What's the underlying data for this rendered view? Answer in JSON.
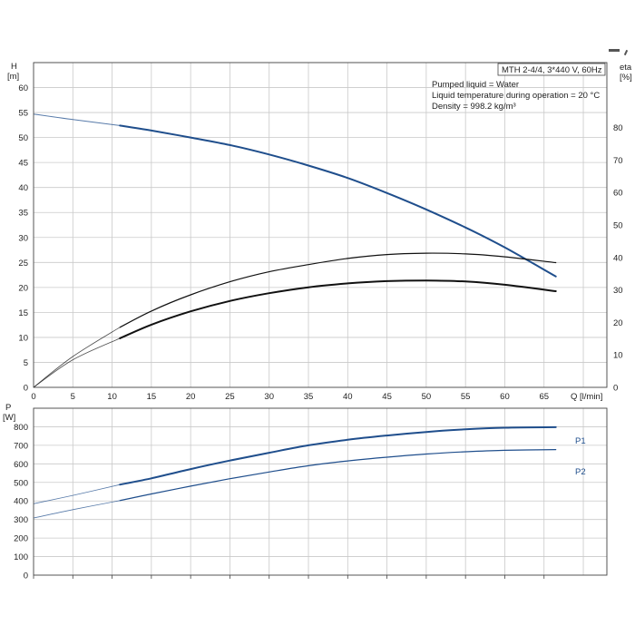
{
  "chart_data": [
    {
      "type": "line",
      "panel": "head-efficiency",
      "x_label": "Q [l/min]",
      "y_label_left": [
        "H",
        "[m]"
      ],
      "y_label_right": [
        "eta",
        "[%]"
      ],
      "xlim": [
        0,
        73
      ],
      "ylim_left": [
        0,
        65
      ],
      "ylim_right": [
        0,
        100
      ],
      "x_ticks": [
        0,
        5,
        10,
        15,
        20,
        25,
        30,
        35,
        40,
        45,
        50,
        55,
        60,
        65
      ],
      "y_ticks_left": [
        0,
        5,
        10,
        15,
        20,
        25,
        30,
        35,
        40,
        45,
        50,
        55,
        60
      ],
      "y_ticks_right": [
        0,
        10,
        20,
        30,
        40,
        50,
        60,
        70,
        80
      ],
      "info_box": {
        "title": "MTH 2-4/4, 3*440 V, 60Hz",
        "lines": [
          "Pumped liquid = Water",
          "Liquid temperature during operation = 20 °C",
          "Density = 998.2 kg/m³"
        ]
      },
      "series": [
        {
          "axis": "left",
          "color": "#1f4e8c",
          "x": [
            0,
            5,
            11,
            15,
            20,
            25,
            30,
            35,
            40,
            45,
            50,
            55,
            60,
            66.5
          ],
          "y": [
            54.7,
            53.6,
            52.4,
            51.4,
            50.0,
            48.5,
            46.6,
            44.4,
            41.9,
            38.9,
            35.6,
            32.0,
            28.0,
            22.2
          ]
        },
        {
          "axis": "right",
          "color": "#111111",
          "x": [
            0,
            5,
            11,
            15,
            20,
            25,
            30,
            35,
            40,
            45,
            50,
            55,
            60,
            66.5
          ],
          "y": [
            0,
            9.5,
            18.5,
            23.5,
            28.5,
            32.5,
            35.6,
            37.8,
            39.7,
            40.9,
            41.3,
            41.1,
            40.2,
            38.4
          ]
        },
        {
          "axis": "right",
          "color": "#111111",
          "x": [
            0,
            5,
            11,
            15,
            20,
            25,
            30,
            35,
            40,
            45,
            50,
            55,
            60,
            66.5
          ],
          "y": [
            0,
            8.5,
            15.1,
            19.3,
            23.4,
            26.6,
            29.0,
            30.8,
            32.0,
            32.7,
            32.9,
            32.6,
            31.6,
            29.6
          ]
        }
      ]
    },
    {
      "type": "line",
      "panel": "power",
      "y_label_left": [
        "P",
        "[W]"
      ],
      "xlim": [
        0,
        73
      ],
      "ylim_left": [
        0,
        900
      ],
      "y_ticks_left": [
        0,
        100,
        200,
        300,
        400,
        500,
        600,
        700,
        800
      ],
      "series": [
        {
          "name": "P1",
          "color": "#1f4e8c",
          "x": [
            0,
            5,
            11,
            15,
            20,
            25,
            30,
            35,
            40,
            45,
            50,
            55,
            60,
            66.5
          ],
          "y": [
            385,
            430,
            488,
            522,
            572,
            618,
            660,
            700,
            730,
            753,
            772,
            786,
            795,
            798
          ]
        },
        {
          "name": "P2",
          "color": "#1f4e8c",
          "x": [
            0,
            5,
            11,
            15,
            20,
            25,
            30,
            35,
            40,
            45,
            50,
            55,
            60,
            66.5
          ],
          "y": [
            308,
            353,
            402,
            438,
            480,
            520,
            556,
            590,
            616,
            636,
            653,
            665,
            673,
            677
          ]
        }
      ]
    }
  ]
}
